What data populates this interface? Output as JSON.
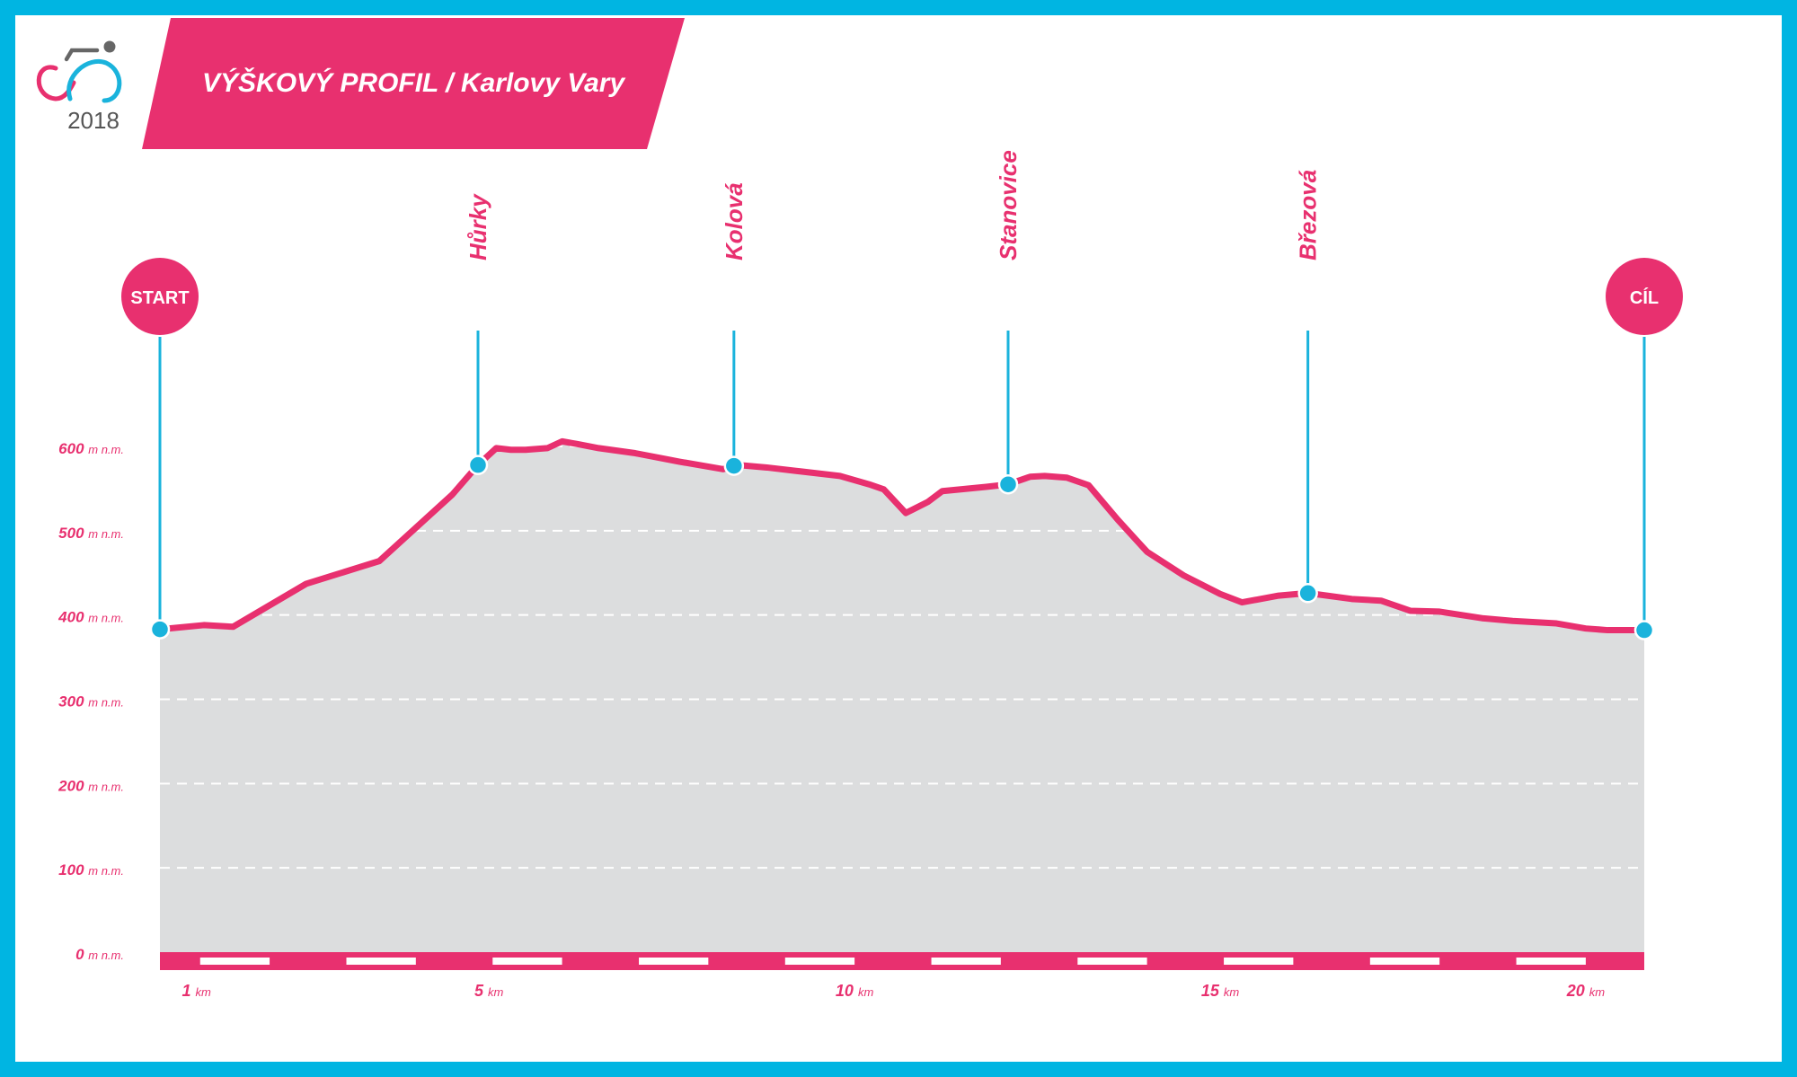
{
  "header": {
    "title": "VÝŠKOVÝ PROFIL / Karlovy Vary",
    "logo_year": "2018"
  },
  "colors": {
    "frame": "#00b5e2",
    "accent": "#e8306f",
    "marker": "#1ab3dc",
    "area": "#dcddde",
    "grid": "#ffffff"
  },
  "icons": {
    "logo": "cyclist-logo-icon"
  },
  "chart_data": {
    "type": "area",
    "xlabel": "",
    "ylabel": "",
    "xlim": [
      0.5,
      20.8
    ],
    "ylim": [
      0,
      600
    ],
    "grid": true,
    "y_ticks": [
      {
        "value": 0,
        "num": "0",
        "unit": "m n.m."
      },
      {
        "value": 100,
        "num": "100",
        "unit": "m n.m."
      },
      {
        "value": 200,
        "num": "200",
        "unit": "m n.m."
      },
      {
        "value": 300,
        "num": "300",
        "unit": "m n.m."
      },
      {
        "value": 400,
        "num": "400",
        "unit": "m n.m."
      },
      {
        "value": 500,
        "num": "500",
        "unit": "m n.m."
      },
      {
        "value": 600,
        "num": "600",
        "unit": "m n.m."
      }
    ],
    "x_ticks": [
      {
        "value": 1,
        "num": "1",
        "unit": "km"
      },
      {
        "value": 5,
        "num": "5",
        "unit": "km"
      },
      {
        "value": 10,
        "num": "10",
        "unit": "km"
      },
      {
        "value": 15,
        "num": "15",
        "unit": "km"
      },
      {
        "value": 20,
        "num": "20",
        "unit": "km"
      }
    ],
    "profile": {
      "x": [
        0.5,
        1.1,
        1.5,
        2.5,
        3.5,
        4.5,
        4.85,
        5.1,
        5.3,
        5.5,
        5.8,
        6.0,
        6.2,
        6.5,
        7.0,
        7.6,
        8.2,
        8.4,
        8.8,
        9.2,
        9.8,
        10.2,
        10.4,
        10.7,
        11.0,
        11.2,
        11.8,
        12.1,
        12.4,
        12.6,
        12.9,
        13.2,
        13.6,
        14.0,
        14.5,
        15.0,
        15.3,
        15.8,
        16.2,
        16.8,
        17.2,
        17.6,
        18.0,
        18.6,
        19.0,
        19.6,
        20.0,
        20.3,
        20.8
      ],
      "y": [
        383,
        388,
        386,
        437,
        464,
        543,
        578,
        598,
        596,
        596,
        598,
        606,
        603,
        598,
        592,
        582,
        573,
        578,
        575,
        571,
        565,
        555,
        549,
        521,
        534,
        547,
        552,
        555,
        564,
        565,
        563,
        554,
        513,
        475,
        447,
        425,
        415,
        423,
        426,
        419,
        417,
        405,
        404,
        396,
        393,
        390,
        384,
        382,
        382
      ]
    },
    "series": [
      {
        "name": "",
        "values": []
      }
    ],
    "waypoints": [
      {
        "name": "START",
        "x": 0.5,
        "y": 383,
        "style": "end"
      },
      {
        "name": "Hůrky",
        "x": 4.85,
        "y": 578,
        "style": "mid"
      },
      {
        "name": "Kolová",
        "x": 8.35,
        "y": 577,
        "style": "mid"
      },
      {
        "name": "Stanovice",
        "x": 12.1,
        "y": 555,
        "style": "mid"
      },
      {
        "name": "Březová",
        "x": 16.2,
        "y": 426,
        "style": "mid"
      },
      {
        "name": "CÍL",
        "x": 20.8,
        "y": 382,
        "style": "end"
      }
    ],
    "baseline_stripes": true
  }
}
